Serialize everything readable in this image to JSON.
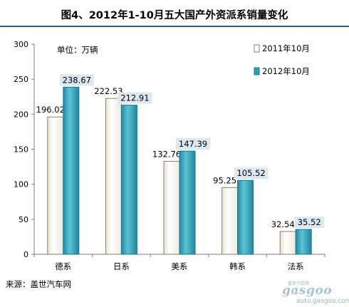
{
  "title": "图4、2012年1-10月五大国产外资派系销量变化",
  "source": "来源：盖世汽车网",
  "watermark": {
    "brand": "gasgoo",
    "site": "auto.gasgoo.com",
    "cn": "盖世汽车网"
  },
  "chart_data": {
    "type": "bar",
    "unit_label": "单位：万辆",
    "categories": [
      "德系",
      "日系",
      "美系",
      "韩系",
      "法系"
    ],
    "series": [
      {
        "name": "2011年10月",
        "values": [
          196.02,
          222.53,
          132.76,
          95.25,
          32.54
        ],
        "color": "#ffffff"
      },
      {
        "name": "2012年10月",
        "values": [
          238.67,
          212.91,
          147.39,
          105.52,
          35.52
        ],
        "color": "#2aa0b8"
      }
    ],
    "ylim": [
      0,
      300
    ],
    "yticks": [
      0,
      50,
      100,
      150,
      200,
      250,
      300
    ],
    "legend_position": "top-right",
    "grid": false
  }
}
